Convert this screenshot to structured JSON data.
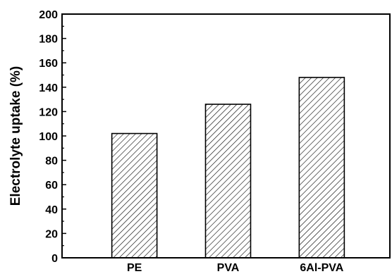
{
  "chart_data": {
    "type": "bar",
    "title": "",
    "xlabel": "",
    "ylabel": "Electrolyte uptake (%)",
    "categories": [
      "PE",
      "PVA",
      "6Al-PVA"
    ],
    "values": [
      102,
      126,
      148
    ],
    "ylim": [
      0,
      200
    ],
    "yticks": [
      0,
      20,
      40,
      60,
      80,
      100,
      120,
      140,
      160,
      180,
      200
    ],
    "ytick_labels": [
      "0",
      "20",
      "40",
      "60",
      "80",
      "100",
      "120",
      "140",
      "160",
      "180",
      "200"
    ],
    "grid": false,
    "legend": "none",
    "bar_fill": "diagonal-hatch",
    "colors": {
      "bar_edge": "#000000",
      "hatch": "#000000",
      "background": "#ffffff"
    }
  }
}
